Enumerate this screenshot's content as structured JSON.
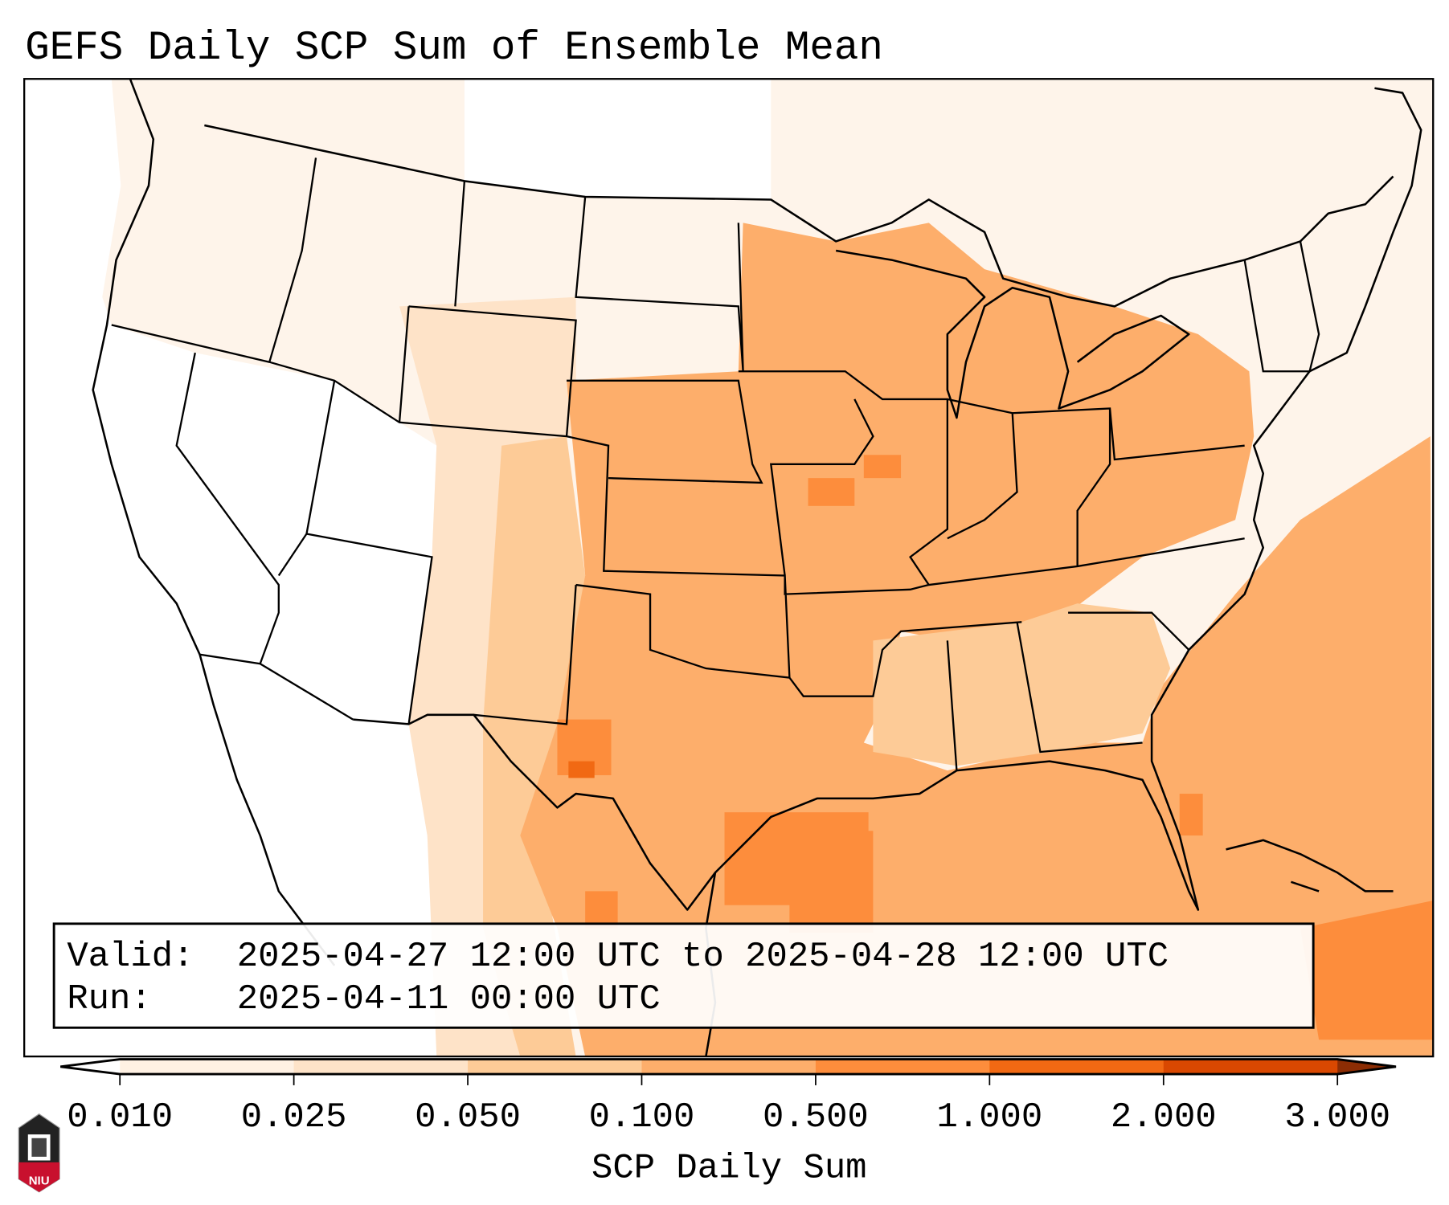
{
  "title": "GEFS Daily SCP Sum of Ensemble Mean",
  "info_box": {
    "valid_label": "Valid:",
    "valid_value": "2025-04-27 12:00 UTC to 2025-04-28 12:00 UTC",
    "run_label": "Run:",
    "run_value": "2025-04-11 00:00 UTC"
  },
  "colorbar": {
    "label": "SCP Daily Sum",
    "ticks": [
      "0.010",
      "0.025",
      "0.050",
      "0.100",
      "0.500",
      "1.000",
      "2.000",
      "3.000"
    ],
    "colors": [
      "#fff1e3",
      "#fee3c8",
      "#fdcb97",
      "#fdae6b",
      "#fd8d3c",
      "#f16913",
      "#d94801",
      "#8c2d04"
    ],
    "extend": "both"
  },
  "logo": {
    "text": "NIU"
  },
  "colors": {
    "frame": "#000000",
    "under": "#ffffff"
  }
}
